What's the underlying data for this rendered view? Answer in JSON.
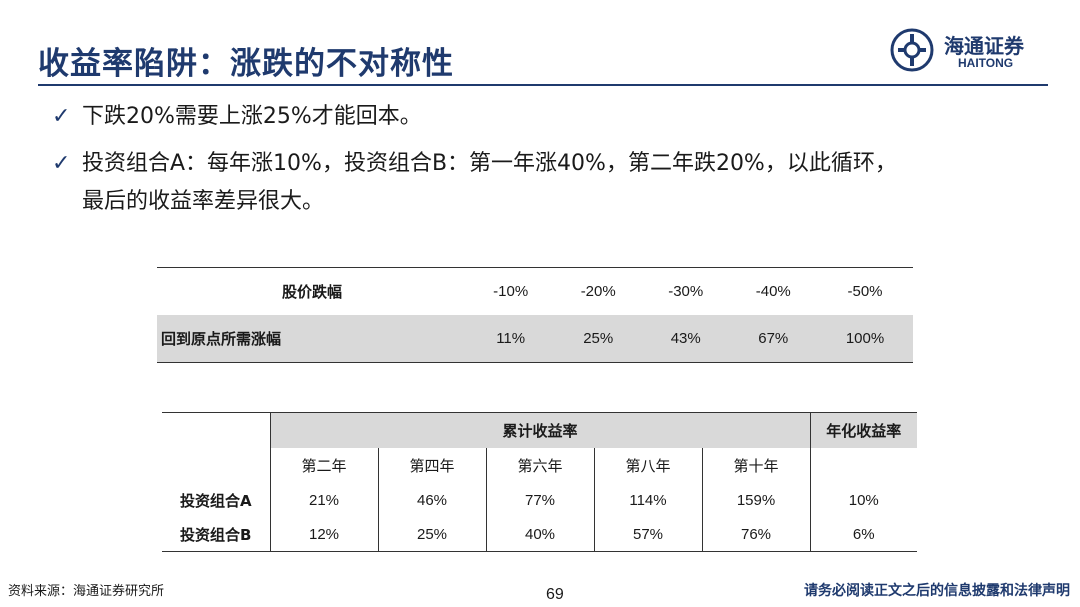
{
  "slide": {
    "title": "收益率陷阱：涨跌的不对称性",
    "logo_cn": "海通证券",
    "logo_en": "HAITONG",
    "bullets": [
      "下跌20%需要上涨25%才能回本。",
      "投资组合A：每年涨10%，投资组合B：第一年涨40%，第二年跌20%，以此循环，",
      "最后的收益率差异很大。"
    ],
    "check_glyph": "✓"
  },
  "chart_data": [
    {
      "type": "table",
      "rows": [
        {
          "label": "股价跌幅",
          "values": [
            "-10%",
            "-20%",
            "-30%",
            "-40%",
            "-50%"
          ]
        },
        {
          "label": "回到原点所需涨幅",
          "values": [
            "11%",
            "25%",
            "43%",
            "67%",
            "100%"
          ]
        }
      ]
    },
    {
      "type": "table",
      "group_header": "累计收益率",
      "annual_header": "年化收益率",
      "columns": [
        "第二年",
        "第四年",
        "第六年",
        "第八年",
        "第十年"
      ],
      "rows": [
        {
          "label": "投资组合A",
          "values": [
            "21%",
            "46%",
            "77%",
            "114%",
            "159%"
          ],
          "annual": "10%"
        },
        {
          "label": "投资组合B",
          "values": [
            "12%",
            "25%",
            "40%",
            "57%",
            "76%"
          ],
          "annual": "6%"
        }
      ]
    }
  ],
  "footer": {
    "source": "资料来源：海通证券研究所",
    "page": "69",
    "disclaimer": "请务必阅读正文之后的信息披露和法律声明"
  },
  "colors": {
    "brand": "#1f3a6e",
    "shade": "#d9d9d9"
  }
}
